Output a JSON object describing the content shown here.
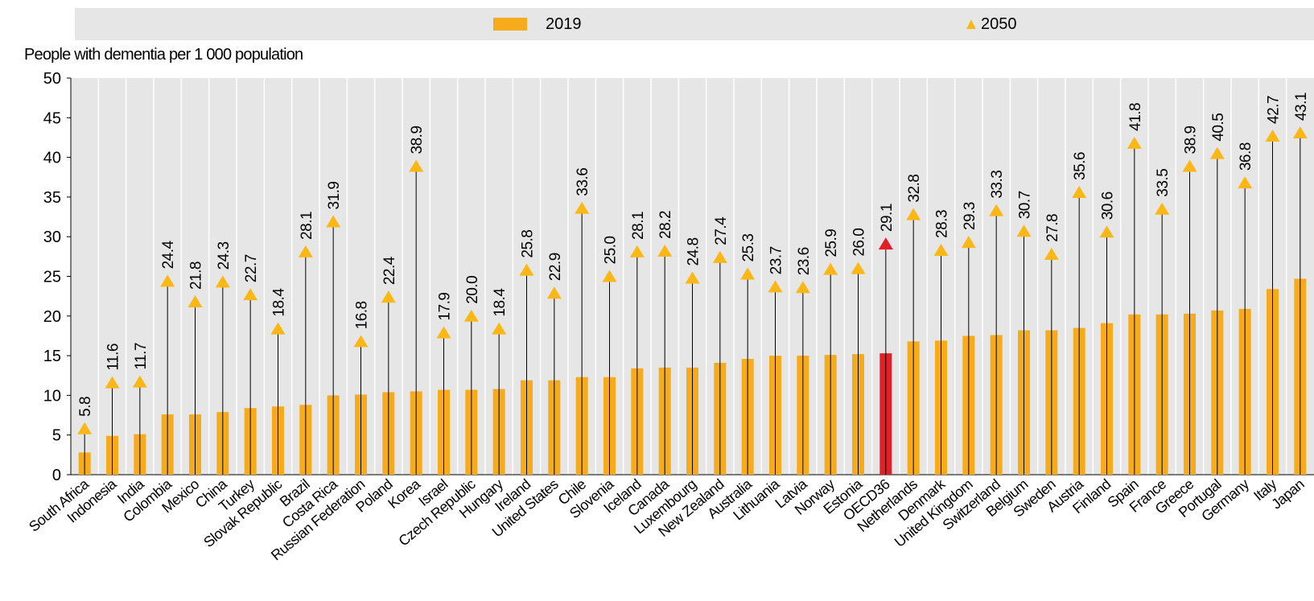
{
  "colors": {
    "bar": "#f5ab1b",
    "bar_highlight": "#e21f26",
    "triangle": "#fbb716",
    "triangle_highlight": "#e21f26",
    "stem": "#000000",
    "plot_bg": "#e6e6e6",
    "grid": "#ffffff"
  },
  "legend": {
    "s2019": "2019",
    "s2050": "2050",
    "marker_2019": "bar",
    "marker_2050": "triangle-icon"
  },
  "chart_data": {
    "type": "bar",
    "ylabel": "People with dementia per 1 000 population",
    "ylim": [
      0,
      50
    ],
    "yticks": [
      0,
      5,
      10,
      15,
      20,
      25,
      30,
      35,
      40,
      45,
      50
    ],
    "legend_position": "top",
    "grid": "vertical bands",
    "highlight_category": "OECD36",
    "categories": [
      "South Africa",
      "Indonesia",
      "India",
      "Colombia",
      "Mexico",
      "China",
      "Turkey",
      "Slovak Republic",
      "Brazil",
      "Costa Rica",
      "Russian Federation",
      "Poland",
      "Korea",
      "Israel",
      "Czech Republic",
      "Hungary",
      "Ireland",
      "United States",
      "Chile",
      "Slovenia",
      "Iceland",
      "Canada",
      "Luxembourg",
      "New Zealand",
      "Australia",
      "Lithuania",
      "Latvia",
      "Norway",
      "Estonia",
      "OECD36",
      "Netherlands",
      "Denmark",
      "United Kingdom",
      "Switzerland",
      "Belgium",
      "Sweden",
      "Austria",
      "Finland",
      "Spain",
      "France",
      "Greece",
      "Portugal",
      "Germany",
      "Italy",
      "Japan"
    ],
    "series": [
      {
        "name": "2019",
        "kind": "bar",
        "values": [
          2.8,
          4.9,
          5.1,
          7.6,
          7.6,
          7.9,
          8.4,
          8.6,
          8.8,
          10.0,
          10.1,
          10.4,
          10.5,
          10.7,
          10.7,
          10.8,
          11.9,
          11.9,
          12.3,
          12.3,
          13.4,
          13.5,
          13.5,
          14.1,
          14.6,
          15.0,
          15.0,
          15.1,
          15.2,
          15.3,
          16.8,
          16.9,
          17.5,
          17.6,
          18.2,
          18.2,
          18.5,
          19.1,
          20.2,
          20.2,
          20.3,
          20.7,
          20.9,
          23.4,
          24.7
        ]
      },
      {
        "name": "2050",
        "kind": "triangle",
        "values": [
          5.8,
          11.6,
          11.7,
          24.4,
          21.8,
          24.3,
          22.7,
          18.4,
          28.1,
          31.9,
          16.8,
          22.4,
          38.9,
          17.9,
          20.0,
          18.4,
          25.8,
          22.9,
          33.6,
          25.0,
          28.1,
          28.2,
          24.8,
          27.4,
          25.3,
          23.7,
          23.6,
          25.9,
          26.0,
          29.1,
          32.8,
          28.3,
          29.3,
          33.3,
          30.7,
          27.8,
          35.6,
          30.6,
          41.8,
          33.5,
          38.9,
          40.5,
          36.8,
          42.7,
          43.1
        ],
        "labels": [
          "5.8",
          "11.6",
          "11.7",
          "24.4",
          "21.8",
          "24.3",
          "22.7",
          "18.4",
          "28.1",
          "31.9",
          "16.8",
          "22.4",
          "38.9",
          "17.9",
          "20.0",
          "18.4",
          "25.8",
          "22.9",
          "33.6",
          "25.0",
          "28.1",
          "28.2",
          "24.8",
          "27.4",
          "25.3",
          "23.7",
          "23.6",
          "25.9",
          "26.0",
          "29.1",
          "32.8",
          "28.3",
          "29.3",
          "33.3",
          "30.7",
          "27.8",
          "35.6",
          "30.6",
          "41.8",
          "33.5",
          "38.9",
          "40.5",
          "36.8",
          "42.7",
          "43.1"
        ]
      }
    ]
  }
}
